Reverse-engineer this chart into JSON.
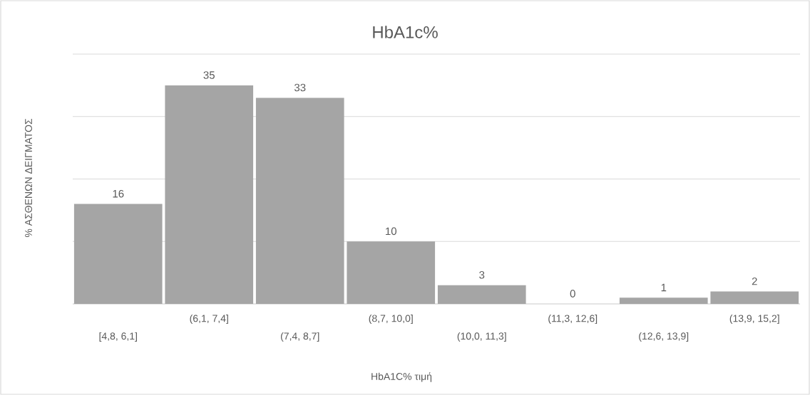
{
  "chart_data": {
    "type": "bar",
    "title": "HbA1c%",
    "xlabel": "HbA1C% τιμή",
    "ylabel": "% ΑΣΘΕΝΩΝ ΔΕΙΓΜΑΤΟΣ",
    "categories": [
      "[4,8, 6,1]",
      "(6,1, 7,4]",
      "(7,4, 8,7]",
      "(8,7, 10,0]",
      "(10,0, 11,3]",
      "(11,3, 12,6]",
      "(12,6, 13,9]",
      "(13,9, 15,2]"
    ],
    "values": [
      16,
      35,
      33,
      10,
      3,
      0,
      1,
      2
    ],
    "color": "#a5a5a5",
    "data_labels": true,
    "grid": "y",
    "tick_labels": "x",
    "ylim": [
      0,
      40
    ]
  }
}
